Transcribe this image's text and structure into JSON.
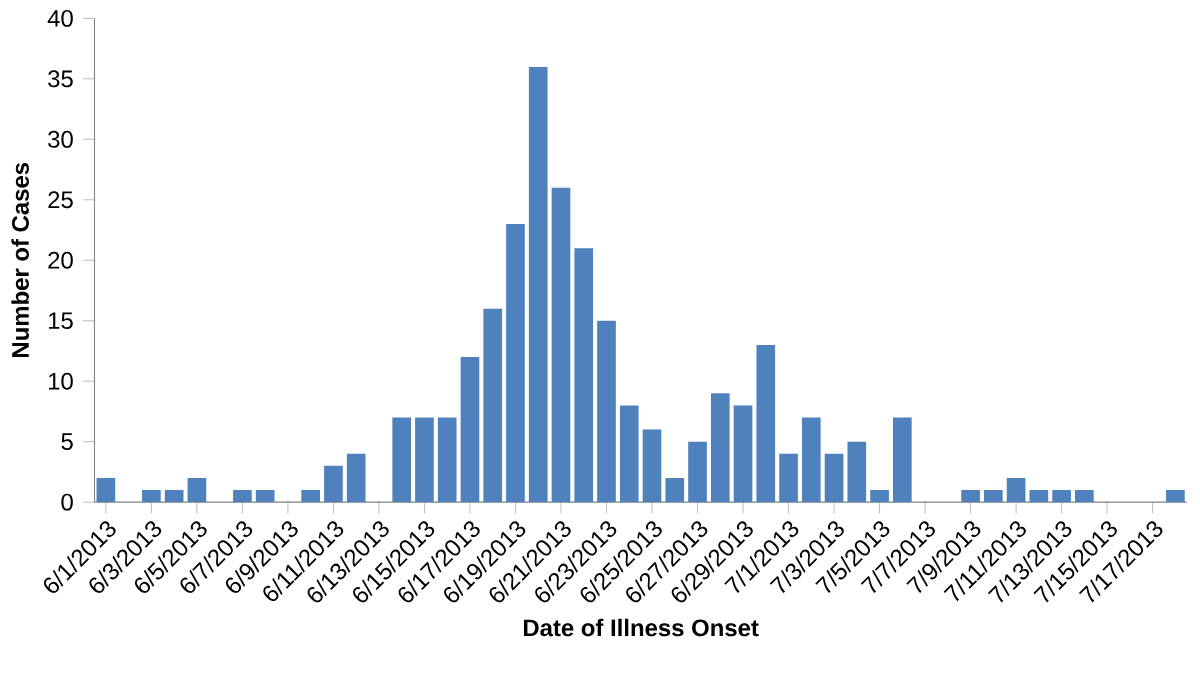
{
  "chart_data": {
    "type": "bar",
    "xlabel": "Date of Illness Onset",
    "ylabel": "Number of Cases",
    "categories": [
      "6/1/2013",
      null,
      "6/3/2013",
      null,
      "6/5/2013",
      null,
      "6/7/2013",
      null,
      "6/9/2013",
      null,
      "6/11/2013",
      null,
      "6/13/2013",
      null,
      "6/15/2013",
      null,
      "6/17/2013",
      null,
      "6/19/2013",
      null,
      "6/21/2013",
      null,
      "6/23/2013",
      null,
      "6/25/2013",
      null,
      "6/27/2013",
      null,
      "6/29/2013",
      null,
      "7/1/2013",
      null,
      "7/3/2013",
      null,
      "7/5/2013",
      null,
      "7/7/2013",
      null,
      "7/9/2013",
      null,
      "7/11/2013",
      null,
      "7/13/2013",
      null,
      "7/15/2013",
      null,
      "7/17/2013",
      null
    ],
    "values": [
      2,
      0,
      1,
      1,
      2,
      0,
      1,
      1,
      0,
      1,
      3,
      4,
      0,
      7,
      7,
      7,
      12,
      16,
      23,
      36,
      26,
      21,
      15,
      8,
      6,
      2,
      5,
      9,
      8,
      13,
      4,
      7,
      4,
      5,
      1,
      7,
      0,
      0,
      1,
      1,
      2,
      1,
      1,
      1,
      0,
      0,
      0,
      1
    ],
    "color": "#4f81bd",
    "ylim": [
      0,
      40
    ],
    "yticks": [
      0,
      5,
      10,
      15,
      20,
      25,
      30,
      35,
      40
    ],
    "grid": false
  }
}
